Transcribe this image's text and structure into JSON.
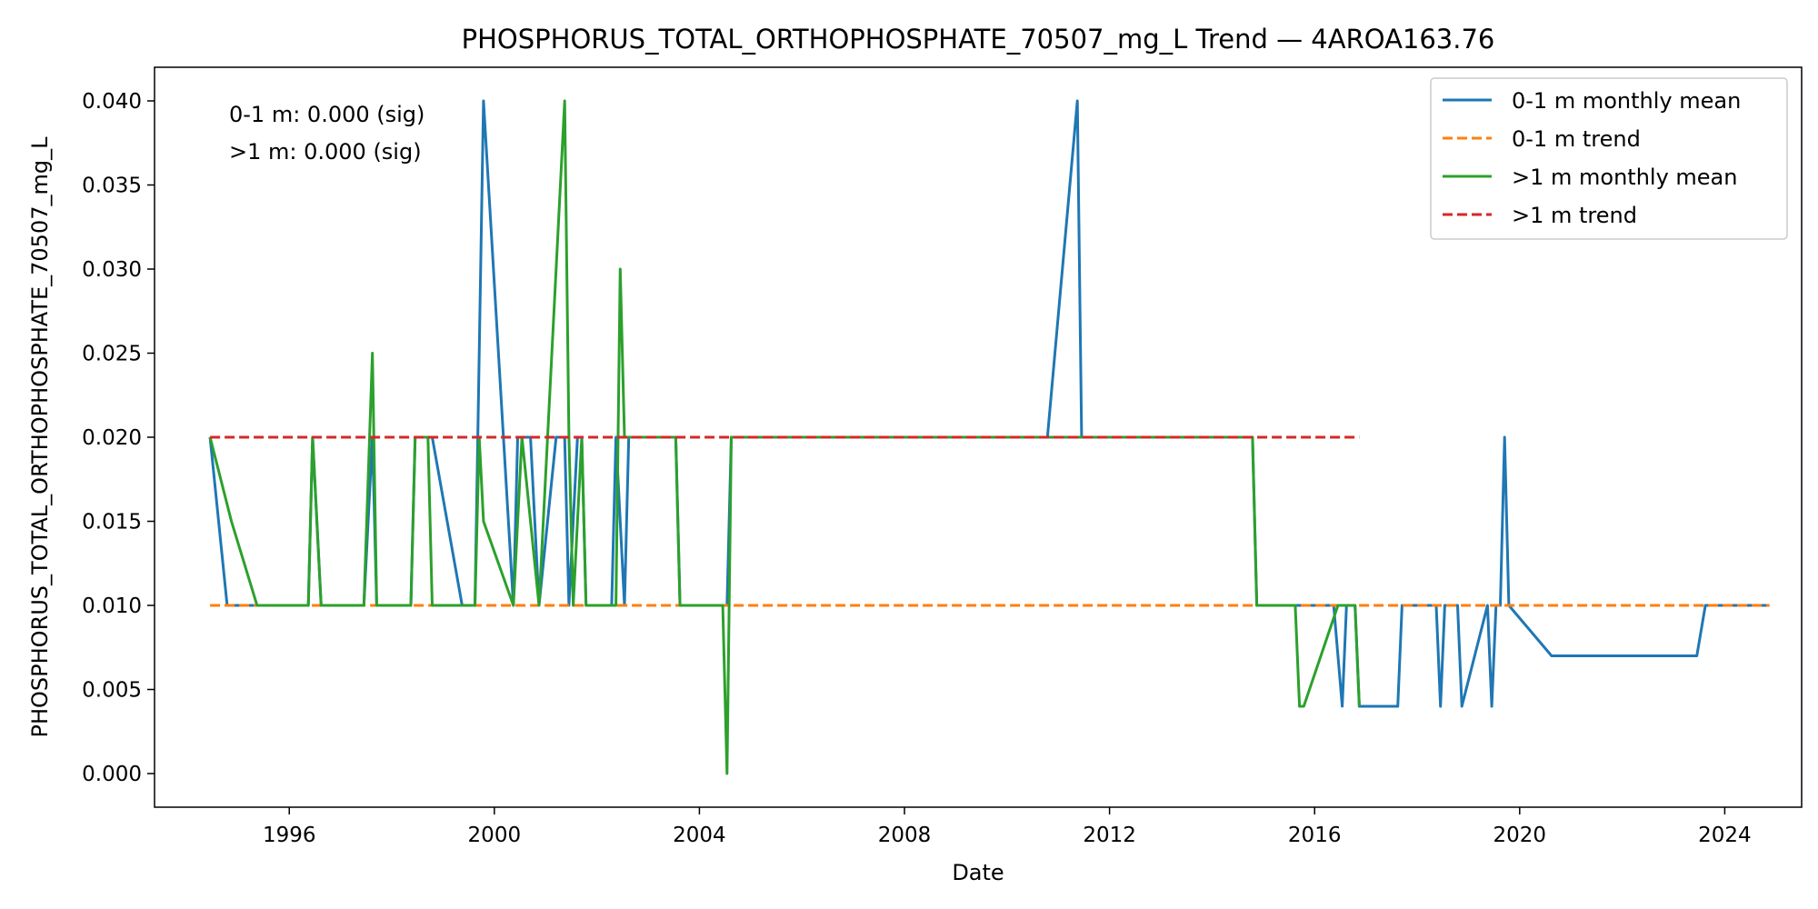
{
  "chart_data": {
    "type": "line",
    "title": "PHOSPHORUS_TOTAL_ORTHOPHOSPHATE_70507_mg_L Trend — 4AROA163.76",
    "xlabel": "Date",
    "ylabel": "PHOSPHORUS_TOTAL_ORTHOPHOSPHATE_70507_mg_L",
    "x_ticks": [
      "1996",
      "2000",
      "2004",
      "2008",
      "2012",
      "2016",
      "2020",
      "2024"
    ],
    "y_ticks": [
      "0.000",
      "0.005",
      "0.010",
      "0.015",
      "0.020",
      "0.025",
      "0.030",
      "0.035",
      "0.040"
    ],
    "xlim": [
      "1993-05-15",
      "2025-07-01"
    ],
    "ylim": [
      -0.002,
      0.042
    ],
    "grid": false,
    "legend_position": "top-right",
    "annotations": [
      "0-1 m: 0.000 (sig)",
      ">1 m: 0.000 (sig)"
    ],
    "series": [
      {
        "name": "0-1 m monthly mean",
        "style": "solid",
        "color": "#1f77b4",
        "points": [
          [
            "1994-06",
            0.02
          ],
          [
            "1994-10",
            0.01
          ],
          [
            "1996-05",
            0.01
          ],
          [
            "1996-06",
            0.02
          ],
          [
            "1996-08",
            0.01
          ],
          [
            "1997-06",
            0.01
          ],
          [
            "1997-08",
            0.02
          ],
          [
            "1997-09",
            0.01
          ],
          [
            "1998-05",
            0.01
          ],
          [
            "1998-06",
            0.02
          ],
          [
            "1998-10",
            0.02
          ],
          [
            "1999-05",
            0.01
          ],
          [
            "1999-08",
            0.01
          ],
          [
            "1999-10",
            0.04
          ],
          [
            "2000-05",
            0.01
          ],
          [
            "2000-06",
            0.02
          ],
          [
            "2000-09",
            0.02
          ],
          [
            "2000-11",
            0.01
          ],
          [
            "2001-03",
            0.02
          ],
          [
            "2001-05",
            0.02
          ],
          [
            "2001-06",
            0.01
          ],
          [
            "2001-08",
            0.02
          ],
          [
            "2001-09",
            0.02
          ],
          [
            "2001-10",
            0.01
          ],
          [
            "2002-04",
            0.01
          ],
          [
            "2002-05",
            0.02
          ],
          [
            "2002-07",
            0.01
          ],
          [
            "2002-08",
            0.02
          ],
          [
            "2003-07",
            0.02
          ],
          [
            "2003-08",
            0.01
          ],
          [
            "2004-07",
            0.01
          ],
          [
            "2004-08",
            0.02
          ],
          [
            "2010-10",
            0.02
          ],
          [
            "2011-05",
            0.04
          ],
          [
            "2011-06",
            0.02
          ],
          [
            "2014-10",
            0.02
          ],
          [
            "2014-11",
            0.01
          ],
          [
            "2016-05",
            0.01
          ],
          [
            "2016-07",
            0.004
          ],
          [
            "2016-08",
            0.01
          ],
          [
            "2016-10",
            0.01
          ],
          [
            "2016-11",
            0.004
          ],
          [
            "2017-08",
            0.004
          ],
          [
            "2017-09",
            0.01
          ],
          [
            "2018-05",
            0.01
          ],
          [
            "2018-06",
            0.004
          ],
          [
            "2018-07",
            0.01
          ],
          [
            "2018-10",
            0.01
          ],
          [
            "2018-11",
            0.004
          ],
          [
            "2019-05",
            0.01
          ],
          [
            "2019-06",
            0.004
          ],
          [
            "2019-07",
            0.01
          ],
          [
            "2019-08",
            0.01
          ],
          [
            "2019-09",
            0.02
          ],
          [
            "2019-10",
            0.01
          ],
          [
            "2020-08",
            0.007
          ],
          [
            "2023-06",
            0.007
          ],
          [
            "2023-08",
            0.01
          ],
          [
            "2024-11",
            0.01
          ]
        ]
      },
      {
        "name": "0-1 m trend",
        "style": "dashed",
        "color": "#ff7f0e",
        "points": [
          [
            "1994-06",
            0.01
          ],
          [
            "2024-11",
            0.01
          ]
        ]
      },
      {
        "name": ">1 m monthly mean",
        "style": "solid",
        "color": "#2ca02c",
        "points": [
          [
            "1994-06",
            0.02
          ],
          [
            "1994-11",
            0.015
          ],
          [
            "1995-05",
            0.01
          ],
          [
            "1996-05",
            0.01
          ],
          [
            "1996-06",
            0.02
          ],
          [
            "1996-08",
            0.01
          ],
          [
            "1997-06",
            0.01
          ],
          [
            "1997-08",
            0.025
          ],
          [
            "1997-09",
            0.01
          ],
          [
            "1998-05",
            0.01
          ],
          [
            "1998-06",
            0.02
          ],
          [
            "1998-09",
            0.02
          ],
          [
            "1998-10",
            0.01
          ],
          [
            "1999-08",
            0.01
          ],
          [
            "1999-09",
            0.02
          ],
          [
            "1999-10",
            0.015
          ],
          [
            "2000-05",
            0.01
          ],
          [
            "2000-07",
            0.02
          ],
          [
            "2000-11",
            0.01
          ],
          [
            "2001-05",
            0.04
          ],
          [
            "2001-06",
            0.02
          ],
          [
            "2001-07",
            0.01
          ],
          [
            "2001-09",
            0.02
          ],
          [
            "2001-10",
            0.01
          ],
          [
            "2002-05",
            0.01
          ],
          [
            "2002-06",
            0.03
          ],
          [
            "2002-07",
            0.02
          ],
          [
            "2003-07",
            0.02
          ],
          [
            "2003-08",
            0.01
          ],
          [
            "2004-06",
            0.01
          ],
          [
            "2004-07",
            0.0
          ],
          [
            "2004-08",
            0.02
          ],
          [
            "2014-10",
            0.02
          ],
          [
            "2014-11",
            0.01
          ],
          [
            "2015-08",
            0.01
          ],
          [
            "2015-09",
            0.004
          ],
          [
            "2015-10",
            0.004
          ],
          [
            "2016-06",
            0.01
          ],
          [
            "2016-10",
            0.01
          ],
          [
            "2016-11",
            0.004
          ]
        ]
      },
      {
        "name": ">1 m trend",
        "style": "dashed",
        "color": "#d62728",
        "points": [
          [
            "1994-06",
            0.02
          ],
          [
            "2016-11",
            0.02
          ]
        ]
      }
    ]
  }
}
